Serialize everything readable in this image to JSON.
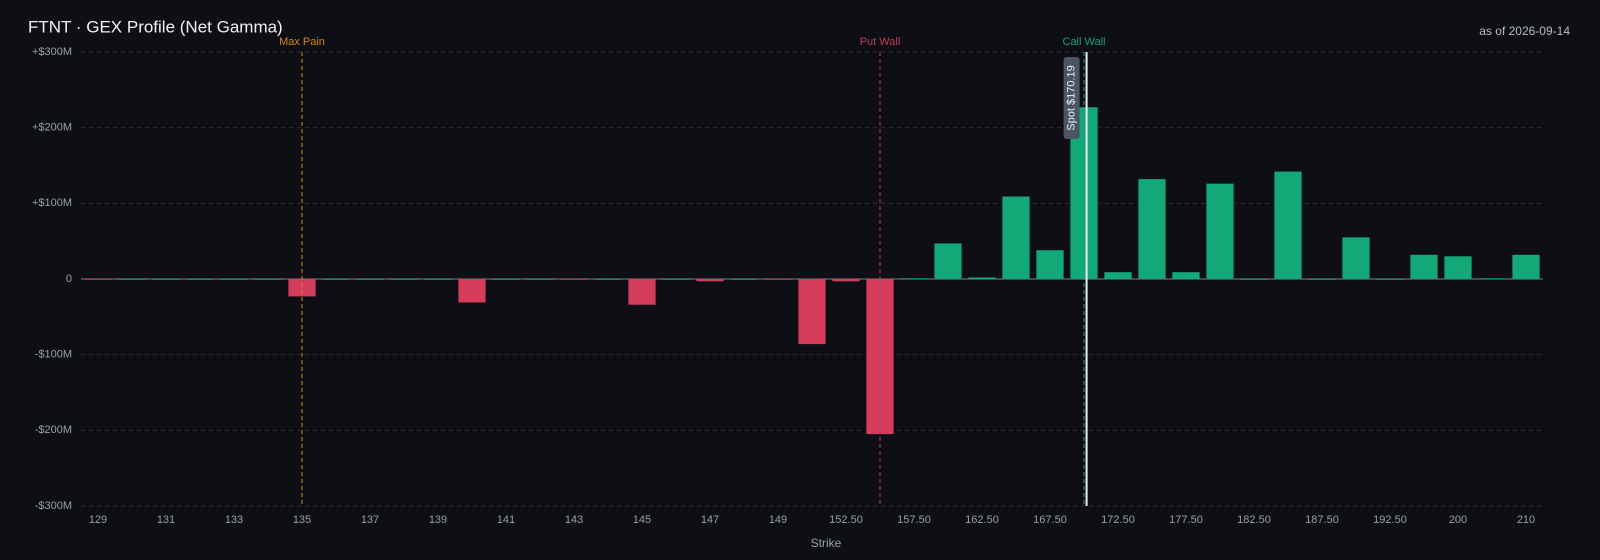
{
  "chart_data": {
    "type": "bar",
    "title": "FTNT · GEX Profile (Net Gamma)",
    "subtitle": "as of 2026-09-14",
    "x_label": "Strike",
    "categories": [
      "129",
      null,
      "131",
      null,
      "133",
      null,
      "135",
      null,
      "137",
      null,
      "139",
      null,
      "141",
      null,
      "143",
      null,
      "145",
      null,
      "147",
      null,
      "149",
      null,
      "152.50",
      null,
      "157.50",
      null,
      "162.50",
      null,
      "167.50",
      null,
      "172.50",
      null,
      "177.50",
      null,
      "182.50",
      null,
      "187.50",
      null,
      "192.50",
      null,
      "200",
      null,
      "210"
    ],
    "strikes": [
      129,
      130,
      131,
      132,
      133,
      134,
      135,
      136,
      137,
      138,
      139,
      140,
      141,
      142,
      143,
      144,
      145,
      146,
      147,
      148,
      149,
      150,
      152.5,
      155,
      157.5,
      160,
      162.5,
      165,
      167.5,
      170,
      172.5,
      175,
      177.5,
      180,
      182.5,
      185,
      187.5,
      190,
      192.5,
      195,
      200,
      205,
      210
    ],
    "values": [
      -1,
      0,
      0,
      0,
      0,
      0,
      -23,
      0,
      0,
      0,
      0,
      -31,
      0,
      0,
      -1,
      0,
      -34,
      0,
      -3,
      0,
      -1,
      -86,
      -3,
      -205,
      1,
      47,
      2,
      109,
      38,
      227,
      9,
      132,
      9,
      126,
      0,
      142,
      0,
      55,
      0,
      32,
      30,
      1,
      32
    ],
    "positive_color": "#13a877",
    "negative_color": "#d63c5b",
    "ylim": [
      -300,
      300
    ],
    "yticks": [
      {
        "value": -300,
        "label": "-$300M"
      },
      {
        "value": -200,
        "label": "-$200M"
      },
      {
        "value": -100,
        "label": "-$100M"
      },
      0,
      {
        "value": 100,
        "label": "+$100M"
      },
      {
        "value": 200,
        "label": "+$200M"
      },
      {
        "value": 300,
        "label": "+$300M"
      }
    ],
    "grid": true,
    "ref_lines": [
      {
        "label": "Max Pain",
        "x": 135,
        "color": "#d4861f"
      },
      {
        "label": "Put Wall",
        "x": 155,
        "color": "#c23b55"
      },
      {
        "label": "Call Wall",
        "x": 170,
        "color": "#1f9e6e"
      }
    ],
    "spot": {
      "label": "Spot $170.19",
      "x": 170.19,
      "color": "#e8f0f4"
    }
  }
}
